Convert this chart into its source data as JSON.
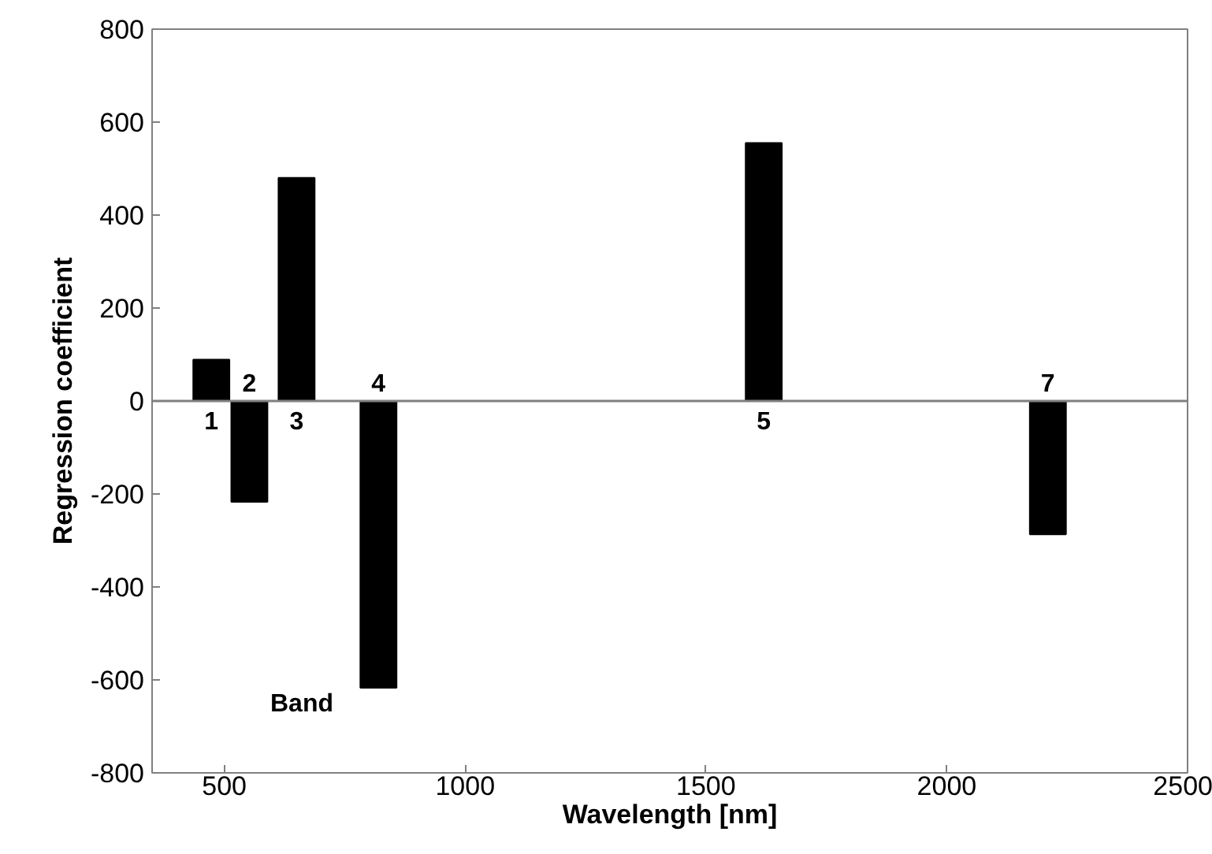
{
  "chart_data": {
    "type": "bar",
    "xlabel": "Wavelength [nm]",
    "ylabel": "Regression coefficient",
    "x": [
      473,
      552,
      650,
      820,
      1620,
      2210
    ],
    "series": [
      {
        "color": "#000000",
        "values": [
          89,
          -217,
          480,
          -617,
          555,
          -287
        ]
      }
    ],
    "xlim": [
      350,
      2500
    ],
    "xticks": [
      500,
      1000,
      1500,
      2000,
      2500
    ],
    "ylim": [
      -800,
      800
    ],
    "yticks": [
      -800,
      -600,
      -400,
      -200,
      0,
      200,
      400,
      600,
      800
    ],
    "ref_lines": [
      {
        "axis": "y",
        "value": 0,
        "color": "#808080"
      }
    ],
    "annotations": [
      "1",
      "2",
      "3",
      "4",
      "5",
      "7",
      "Band"
    ],
    "grid": false
  }
}
